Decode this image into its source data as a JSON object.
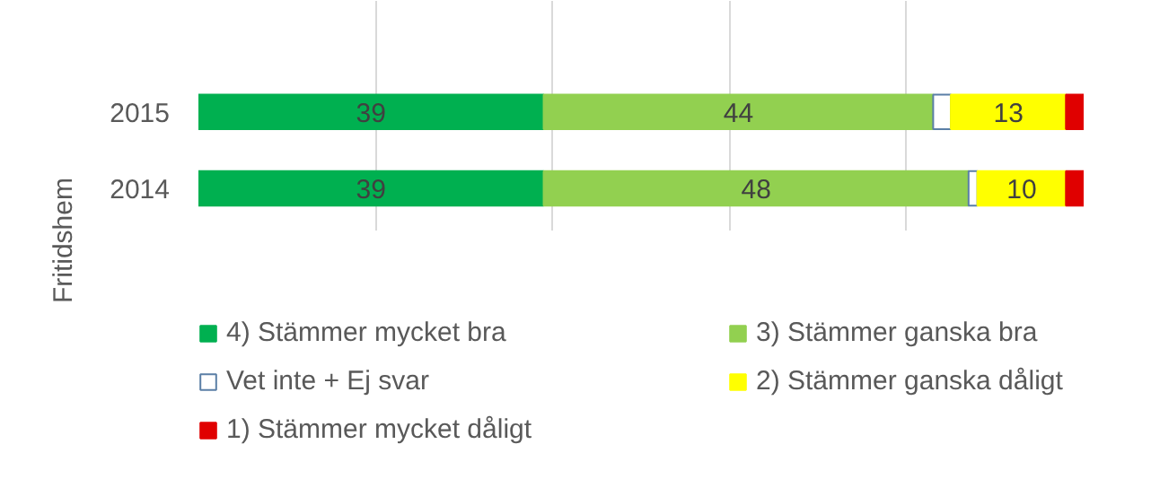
{
  "chart_data": {
    "type": "bar",
    "orientation": "horizontal",
    "stacked": true,
    "categories": [
      "2015",
      "2014"
    ],
    "grid": "x",
    "legend": "bottom",
    "annotations": [
      "Fritidshem"
    ],
    "series": [
      {
        "name": "4) Stämmer mycket bra",
        "color": "#00b050",
        "values": [
          39,
          39
        ],
        "value_labels": [
          "39",
          "39"
        ]
      },
      {
        "name": "3) Stämmer ganska bra",
        "color": "#92d050",
        "values": [
          44,
          48
        ],
        "value_labels": [
          "44",
          "48"
        ]
      },
      {
        "name": "Vet inte + Ej svar",
        "color": "#ffffff",
        "values": [
          2,
          1
        ],
        "value_labels": [
          null,
          null
        ]
      },
      {
        "name": "2) Stämmer ganska dåligt",
        "color": "#ffff00",
        "values": [
          13,
          10
        ],
        "value_labels": [
          "13",
          "10"
        ]
      },
      {
        "name": "1) Stämmer mycket dåligt",
        "color": "#e00000",
        "values": [
          2,
          2
        ],
        "value_labels": [
          null,
          null
        ]
      }
    ]
  }
}
